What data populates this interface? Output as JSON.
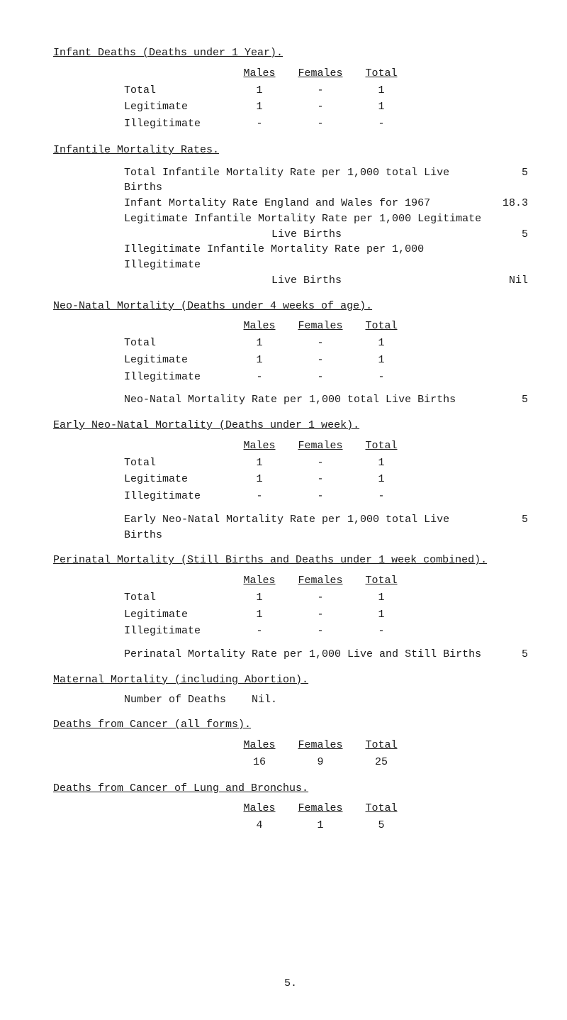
{
  "sections": {
    "infant_deaths": {
      "title": "Infant Deaths (Deaths under 1 Year).",
      "headers": [
        "Males",
        "Females",
        "Total"
      ],
      "rows": [
        {
          "label": "Total",
          "m": "1",
          "f": "-",
          "t": "1"
        },
        {
          "label": "Legitimate",
          "m": "1",
          "f": "-",
          "t": "1"
        },
        {
          "label": "Illegitimate",
          "m": "-",
          "f": "-",
          "t": "-"
        }
      ]
    },
    "infantile_rates": {
      "title": "Infantile Mortality Rates.",
      "lines": [
        {
          "text": "Total Infantile Mortality Rate per 1,000 total Live Births",
          "val": "5"
        },
        {
          "text": "Infant Mortality Rate England and Wales for 1967",
          "val": "18.3"
        },
        {
          "text": "Legitimate Infantile Mortality Rate per 1,000 Legitimate",
          "val": ""
        },
        {
          "text": "Live Births",
          "val": "5",
          "indent": true
        },
        {
          "text": "Illegitimate Infantile Mortality Rate per 1,000 Illegitimate",
          "val": ""
        },
        {
          "text": "Live Births",
          "val": "Nil",
          "indent": true
        }
      ]
    },
    "neo_natal": {
      "title": "Neo-Natal Mortality (Deaths under 4 weeks of age).",
      "headers": [
        "Males",
        "Females",
        "Total"
      ],
      "rows": [
        {
          "label": "Total",
          "m": "1",
          "f": "-",
          "t": "1"
        },
        {
          "label": "Legitimate",
          "m": "1",
          "f": "-",
          "t": "1"
        },
        {
          "label": "Illegitimate",
          "m": "-",
          "f": "-",
          "t": "-"
        }
      ],
      "rate_text": "Neo-Natal Mortality Rate per 1,000 total Live Births",
      "rate_val": "5"
    },
    "early_neo": {
      "title": "Early Neo-Natal Mortality (Deaths under 1 week).",
      "headers": [
        "Males",
        "Females",
        "Total"
      ],
      "rows": [
        {
          "label": "Total",
          "m": "1",
          "f": "-",
          "t": "1"
        },
        {
          "label": "Legitimate",
          "m": "1",
          "f": "-",
          "t": "1"
        },
        {
          "label": "Illegitimate",
          "m": "-",
          "f": "-",
          "t": "-"
        }
      ],
      "rate_text": "Early Neo-Natal Mortality Rate per 1,000 total Live Births",
      "rate_val": "5"
    },
    "perinatal": {
      "title": "Perinatal Mortality (Still Births and Deaths under 1 week combined).",
      "headers": [
        "Males",
        "Females",
        "Total"
      ],
      "rows": [
        {
          "label": "Total",
          "m": "1",
          "f": "-",
          "t": "1"
        },
        {
          "label": "Legitimate",
          "m": "1",
          "f": "-",
          "t": "1"
        },
        {
          "label": "Illegitimate",
          "m": "-",
          "f": "-",
          "t": "-"
        }
      ],
      "rate_text": "Perinatal Mortality Rate per 1,000 Live and Still Births",
      "rate_val": "5"
    },
    "maternal": {
      "title": "Maternal Mortality (including Abortion).",
      "label": "Number of Deaths",
      "value": "Nil."
    },
    "cancer_all": {
      "title": "Deaths from Cancer (all forms).",
      "headers": [
        "Males",
        "Females",
        "Total"
      ],
      "values": [
        "16",
        "9",
        "25"
      ]
    },
    "cancer_lung": {
      "title": "Deaths from Cancer of Lung and Bronchus.",
      "headers": [
        "Males",
        "Females",
        "Total"
      ],
      "values": [
        "4",
        "1",
        "5"
      ]
    }
  },
  "page_number": "5."
}
